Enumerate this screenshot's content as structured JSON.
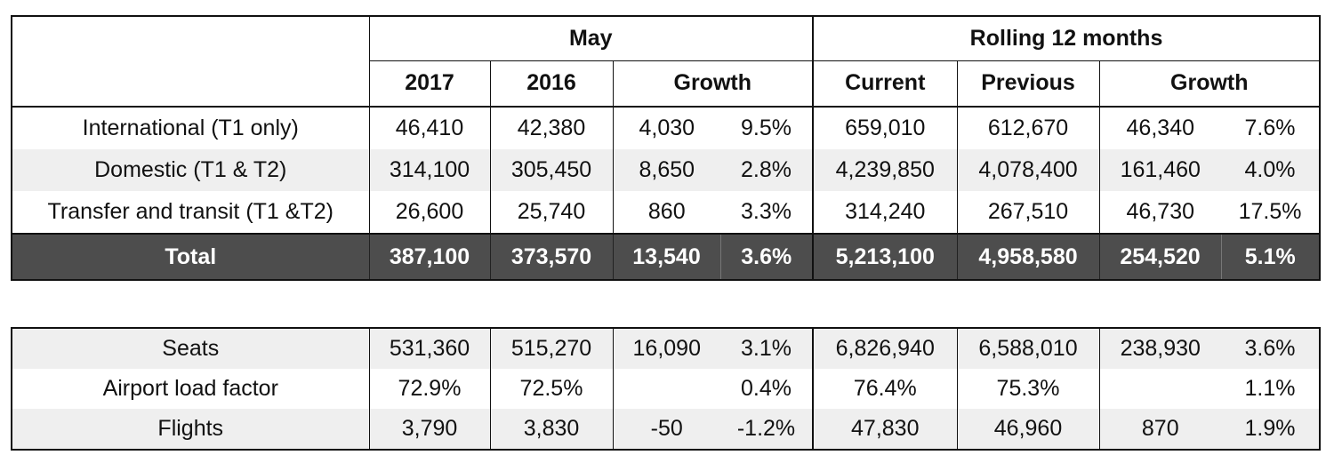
{
  "header": {
    "may": "May",
    "rolling": "Rolling 12 months",
    "may_cols": [
      "2017",
      "2016",
      "Growth"
    ],
    "rolling_cols": [
      "Current",
      "Previous",
      "Growth"
    ]
  },
  "rows": [
    {
      "label": "International (T1 only)",
      "v": [
        "46,410",
        "42,380",
        "4,030",
        "9.5%",
        "659,010",
        "612,670",
        "46,340",
        "7.6%"
      ]
    },
    {
      "label": "Domestic (T1 & T2)",
      "v": [
        "314,100",
        "305,450",
        "8,650",
        "2.8%",
        "4,239,850",
        "4,078,400",
        "161,460",
        "4.0%"
      ]
    },
    {
      "label": "Transfer and transit (T1 &T2)",
      "v": [
        "26,600",
        "25,740",
        "860",
        "3.3%",
        "314,240",
        "267,510",
        "46,730",
        "17.5%"
      ]
    }
  ],
  "total": {
    "label": "Total",
    "v": [
      "387,100",
      "373,570",
      "13,540",
      "3.6%",
      "5,213,100",
      "4,958,580",
      "254,520",
      "5.1%"
    ]
  },
  "bottom_rows": [
    {
      "label": "Seats",
      "v": [
        "531,360",
        "515,270",
        "16,090",
        "3.1%",
        "6,826,940",
        "6,588,010",
        "238,930",
        "3.6%"
      ]
    },
    {
      "label": "Airport load factor",
      "v": [
        "72.9%",
        "72.5%",
        "",
        "0.4%",
        "76.4%",
        "75.3%",
        "",
        "1.1%"
      ]
    },
    {
      "label": "Flights",
      "v": [
        "3,790",
        "3,830",
        "-50",
        "-1.2%",
        "47,830",
        "46,960",
        "870",
        "1.9%"
      ]
    }
  ]
}
